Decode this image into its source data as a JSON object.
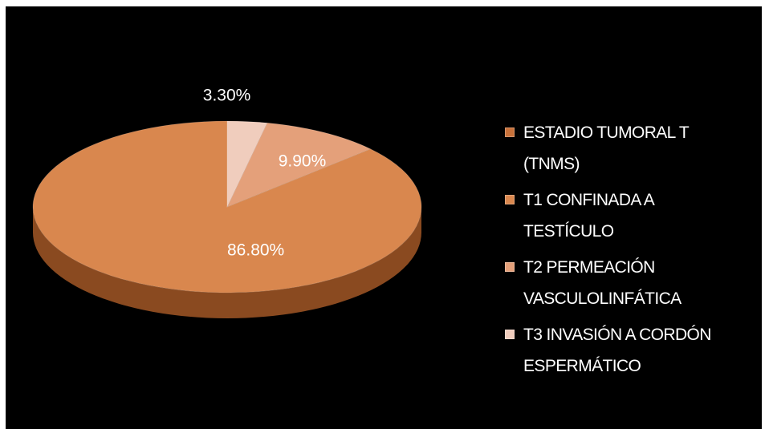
{
  "chart_data": {
    "type": "pie",
    "title": "",
    "legend_position": "right",
    "legend": [
      {
        "label_lines": [
          "ESTADIO TUMORAL T",
          "(TNMS)"
        ],
        "color": "#c8713a"
      },
      {
        "label_lines": [
          "T1 CONFINADA A",
          "TESTÍCULO"
        ],
        "color": "#d9874e"
      },
      {
        "label_lines": [
          "T2 PERMEACIÓN",
          "VASCULOLINFÁTICA"
        ],
        "color": "#e4a07a"
      },
      {
        "label_lines": [
          "T3 INVASIÓN A CORDÓN",
          "ESPERMÁTICO"
        ],
        "color": "#f0cdbd"
      }
    ],
    "slices": [
      {
        "category": "T1 CONFINADA A TESTÍCULO",
        "value": 86.8,
        "label": "86.80%",
        "color": "#d9874e",
        "side_color": "#8a4a20"
      },
      {
        "category": "T2 PERMEACIÓN VASCULOLINFÁTICA",
        "value": 9.9,
        "label": "9.90%",
        "color": "#e4a07a",
        "side_color": "#9a5d3c"
      },
      {
        "category": "T3 INVASIÓN A CORDÓN ESPERMÁTICO",
        "value": 3.3,
        "label": "3.30%",
        "color": "#f0cdbd",
        "side_color": "#a98a7c"
      }
    ]
  }
}
